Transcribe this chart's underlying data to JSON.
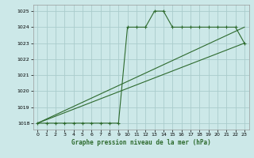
{
  "title": "Graphe pression niveau de la mer (hPa)",
  "bg_color": "#cce8e8",
  "grid_color": "#aacccc",
  "line_color": "#2d6a2d",
  "x_ticks": [
    0,
    1,
    2,
    3,
    4,
    5,
    6,
    7,
    8,
    9,
    10,
    11,
    12,
    13,
    14,
    15,
    16,
    17,
    18,
    19,
    20,
    21,
    22,
    23
  ],
  "y_ticks": [
    1018,
    1019,
    1020,
    1021,
    1022,
    1023,
    1024,
    1025
  ],
  "ylim": [
    1017.6,
    1025.4
  ],
  "xlim": [
    -0.5,
    23.5
  ],
  "line1_x": [
    0,
    1,
    2,
    3,
    4,
    5,
    6,
    7,
    8,
    9,
    10,
    11,
    12,
    13,
    14,
    15,
    16,
    17,
    18,
    19,
    20,
    21,
    22,
    23
  ],
  "line1_y": [
    1018,
    1018,
    1018,
    1018,
    1018,
    1018,
    1018,
    1018,
    1018,
    1018,
    1024,
    1024,
    1024,
    1025,
    1025,
    1024,
    1024,
    1024,
    1024,
    1024,
    1024,
    1024,
    1024,
    1023
  ],
  "line2_x": [
    0,
    23
  ],
  "line2_y": [
    1018,
    1023
  ],
  "line3_x": [
    0,
    23
  ],
  "line3_y": [
    1018,
    1024
  ]
}
